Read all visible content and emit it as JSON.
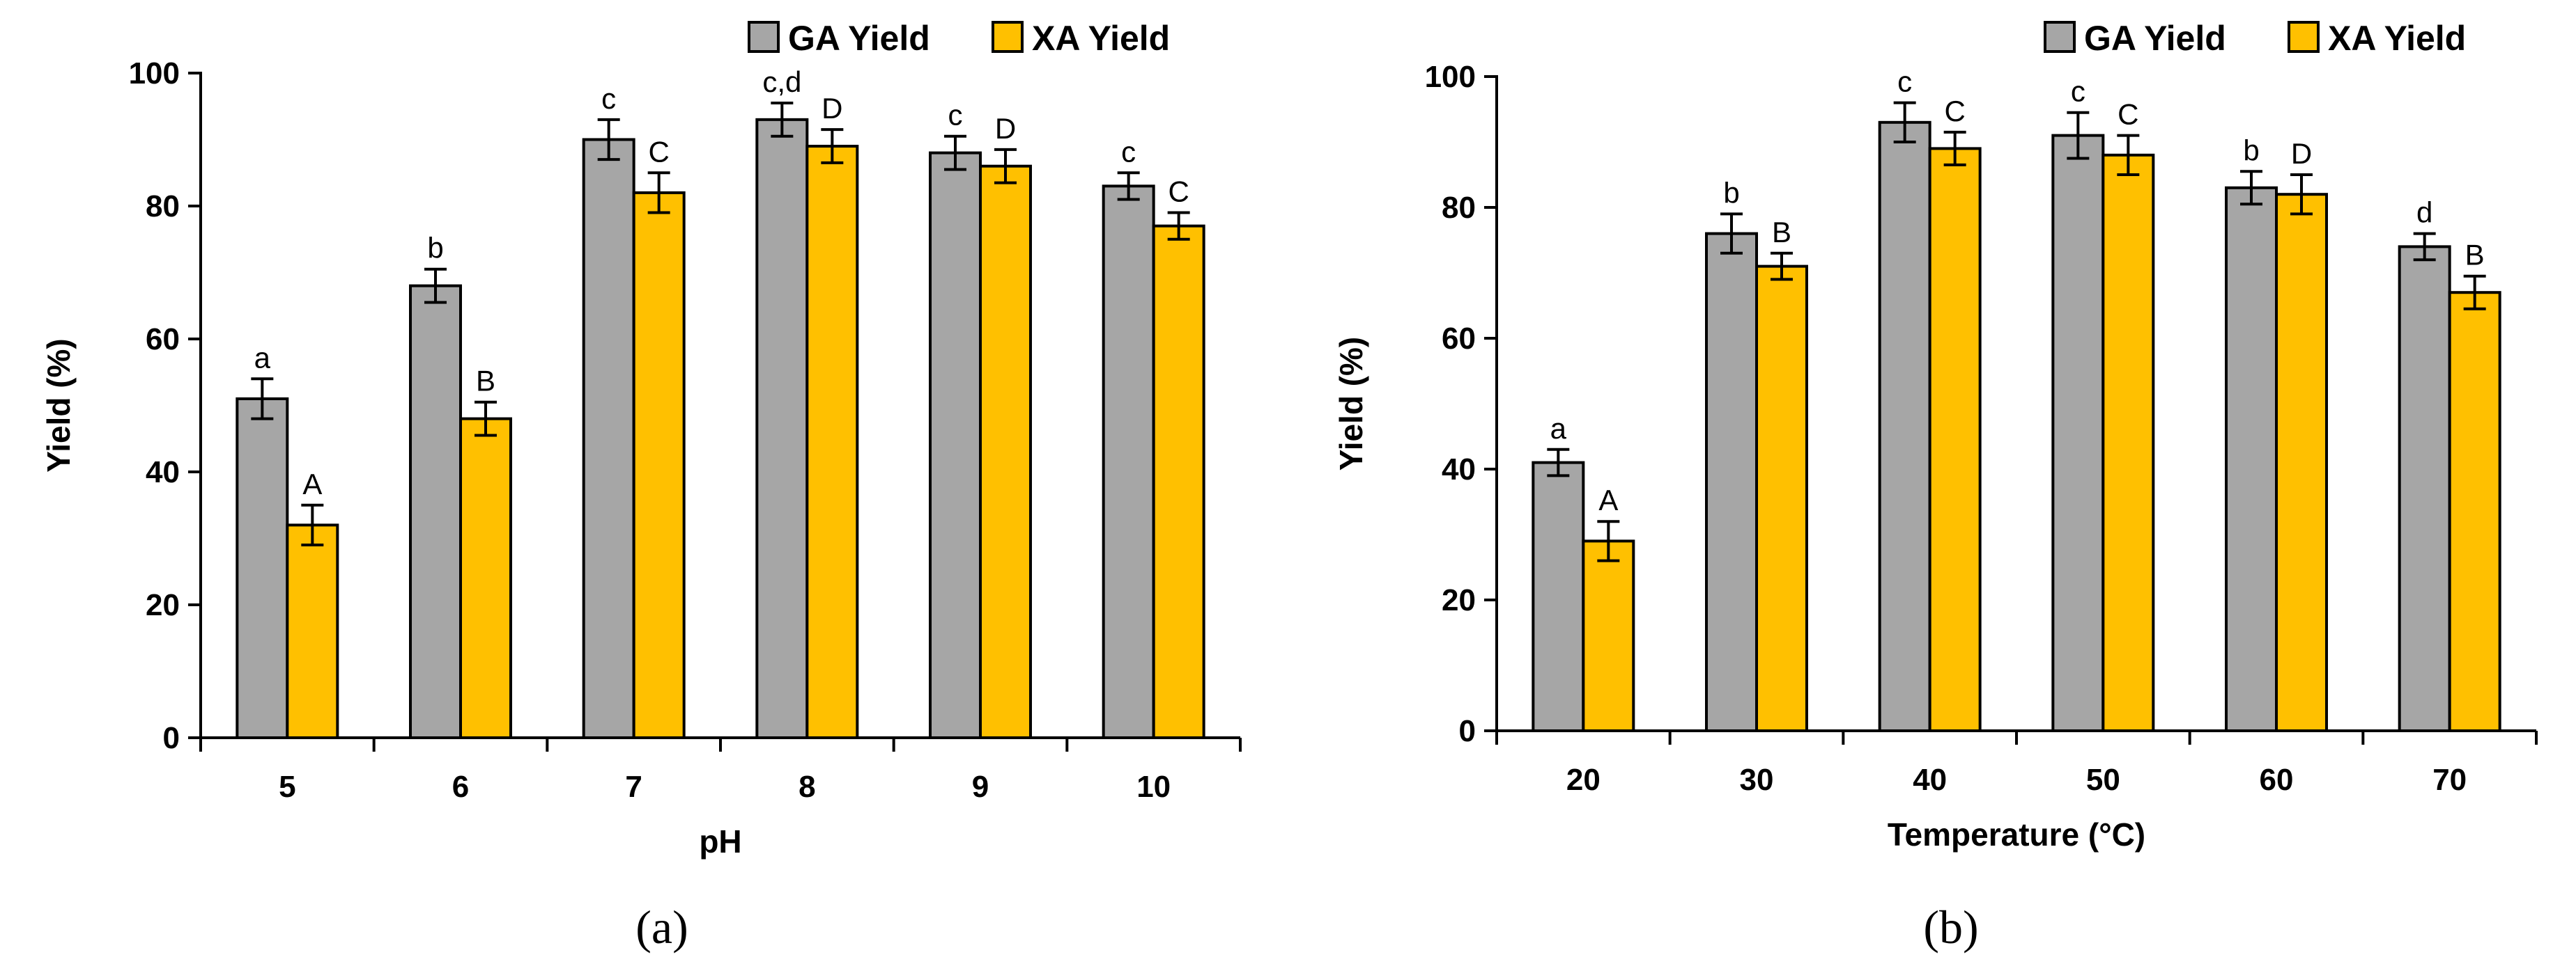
{
  "colors": {
    "ga": "#a6a6a6",
    "xa": "#ffc000",
    "axis": "#000000"
  },
  "chart_data": [
    {
      "type": "bar",
      "caption": "(a)",
      "xlabel": "pH",
      "ylabel": "Yield (%)",
      "ylim": [
        0,
        100
      ],
      "yticks": [
        "0",
        "20",
        "40",
        "60",
        "80",
        "100"
      ],
      "categories": [
        "5",
        "6",
        "7",
        "8",
        "9",
        "10"
      ],
      "legend_position": "top-right",
      "series": [
        {
          "name": "GA Yield",
          "values": [
            51,
            68,
            90,
            93,
            88,
            83
          ],
          "errors": [
            3,
            2.5,
            3,
            2.5,
            2.5,
            2
          ],
          "letters": [
            "a",
            "b",
            "c",
            "c,d",
            "c",
            "c"
          ]
        },
        {
          "name": "XA Yield",
          "values": [
            32,
            48,
            82,
            89,
            86,
            77
          ],
          "errors": [
            3,
            2.5,
            3,
            2.5,
            2.5,
            2
          ],
          "letters": [
            "A",
            "B",
            "C",
            "D",
            "D",
            "C"
          ]
        }
      ]
    },
    {
      "type": "bar",
      "caption": "(b)",
      "xlabel": "Temperature (°C)",
      "ylabel": "Yield (%)",
      "ylim": [
        0,
        100
      ],
      "yticks": [
        "0",
        "20",
        "40",
        "60",
        "80",
        "100"
      ],
      "categories": [
        "20",
        "30",
        "40",
        "50",
        "60",
        "70"
      ],
      "legend_position": "top-right",
      "series": [
        {
          "name": "GA Yield",
          "values": [
            41,
            76,
            93,
            91,
            83,
            74
          ],
          "errors": [
            2,
            3,
            3,
            3.5,
            2.5,
            2
          ],
          "letters": [
            "a",
            "b",
            "c",
            "c",
            "b",
            "d"
          ]
        },
        {
          "name": "XA Yield",
          "values": [
            29,
            71,
            89,
            88,
            82,
            67
          ],
          "errors": [
            3,
            2,
            2.5,
            3,
            3,
            2.5
          ],
          "letters": [
            "A",
            "B",
            "C",
            "C",
            "D",
            "B"
          ]
        }
      ]
    }
  ]
}
